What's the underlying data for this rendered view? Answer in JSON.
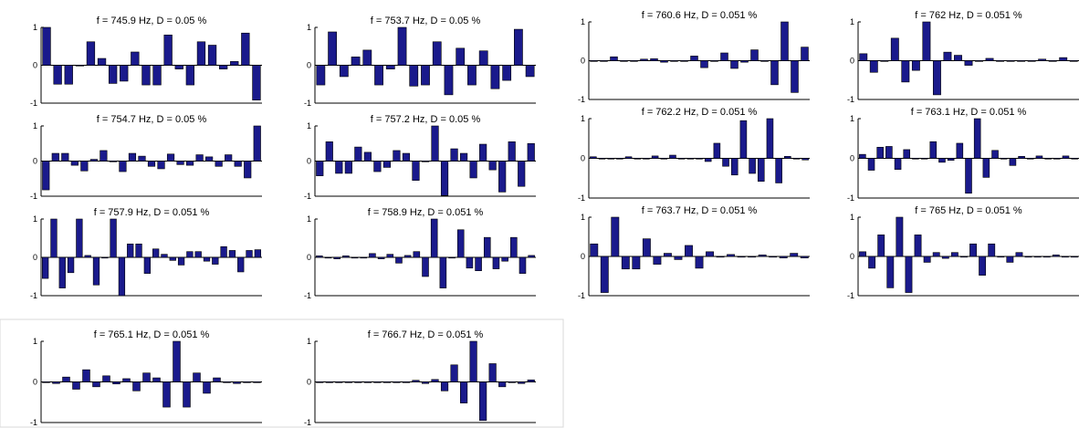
{
  "colors": {
    "bar": "#1a1a8c",
    "bar_edge": "#000000",
    "axis": "#000000",
    "panel_border": "#d8d8d8"
  },
  "chart_data": [
    {
      "type": "bar",
      "title": "f = 745.9 Hz,  D = 0.05 %",
      "ylim": [
        -1,
        1
      ],
      "yticks": [
        "1",
        "0",
        "-1"
      ],
      "values": [
        1.0,
        -0.5,
        -0.5,
        0.0,
        0.62,
        0.18,
        -0.48,
        -0.42,
        0.35,
        -0.52,
        -0.52,
        0.8,
        -0.1,
        -0.52,
        0.62,
        0.53,
        -0.1,
        0.1,
        0.85,
        -0.92
      ]
    },
    {
      "type": "bar",
      "title": "f = 753.7 Hz,  D = 0.05 %",
      "ylim": [
        -1,
        1
      ],
      "yticks": [
        "1",
        "0",
        "-1"
      ],
      "values": [
        -0.52,
        0.88,
        -0.3,
        0.22,
        0.4,
        -0.52,
        -0.1,
        1.0,
        -0.55,
        -0.52,
        0.62,
        -0.78,
        0.45,
        -0.52,
        0.38,
        -0.62,
        -0.4,
        0.95,
        -0.3
      ]
    },
    {
      "type": "bar",
      "title": "f = 760.6 Hz,  D = 0.051 %",
      "ylim": [
        -1,
        1
      ],
      "yticks": [
        "1",
        "0",
        "-1"
      ],
      "values": [
        0.0,
        0.0,
        0.1,
        0.0,
        0.0,
        0.04,
        0.05,
        -0.04,
        0.0,
        0.0,
        0.12,
        -0.18,
        0.0,
        0.2,
        -0.2,
        -0.04,
        0.28,
        0.0,
        -0.62,
        1.0,
        -0.82,
        0.35
      ]
    },
    {
      "type": "bar",
      "title": "f = 762 Hz,  D = 0.051 %",
      "ylim": [
        -1,
        1
      ],
      "yticks": [
        "1",
        "0",
        "-1"
      ],
      "values": [
        0.18,
        -0.3,
        0.0,
        0.58,
        -0.55,
        -0.25,
        1.0,
        -0.88,
        0.22,
        0.14,
        -0.12,
        0.0,
        0.06,
        0.0,
        0.0,
        0.0,
        0.0,
        0.04,
        0.0,
        0.08,
        0.0
      ]
    },
    {
      "type": "bar",
      "title": "f = 754.7 Hz,  D = 0.05 %",
      "ylim": [
        -1,
        1
      ],
      "yticks": [
        "1",
        "0",
        "-1"
      ],
      "values": [
        -0.82,
        0.22,
        0.22,
        -0.12,
        -0.28,
        0.05,
        0.3,
        0.0,
        -0.3,
        0.22,
        0.14,
        -0.15,
        -0.22,
        0.2,
        -0.1,
        -0.12,
        0.18,
        0.12,
        -0.15,
        0.18,
        -0.15,
        -0.48,
        1.0
      ]
    },
    {
      "type": "bar",
      "title": "f = 757.2 Hz,  D = 0.05 %",
      "ylim": [
        -1,
        1
      ],
      "yticks": [
        "1",
        "0",
        "-1"
      ],
      "values": [
        -0.42,
        0.55,
        -0.35,
        -0.35,
        0.4,
        0.25,
        -0.3,
        -0.18,
        0.3,
        0.22,
        -0.55,
        0.0,
        1.0,
        -0.98,
        0.35,
        0.22,
        -0.48,
        0.48,
        -0.25,
        -0.88,
        0.55,
        -0.72,
        0.5
      ]
    },
    {
      "type": "bar",
      "title": "f = 762.2 Hz,  D = 0.051 %",
      "ylim": [
        -1,
        1
      ],
      "yticks": [
        "1",
        "0",
        "-1"
      ],
      "values": [
        0.04,
        0.0,
        0.0,
        0.0,
        0.04,
        0.0,
        0.0,
        0.06,
        0.0,
        0.08,
        0.0,
        0.0,
        0.0,
        -0.08,
        0.38,
        -0.2,
        -0.42,
        0.95,
        -0.38,
        -0.58,
        1.0,
        -0.62,
        0.05,
        0.0,
        -0.04
      ]
    },
    {
      "type": "bar",
      "title": "f = 763.1 Hz,  D = 0.051 %",
      "ylim": [
        -1,
        1
      ],
      "yticks": [
        "1",
        "0",
        "-1"
      ],
      "values": [
        0.1,
        -0.3,
        0.28,
        0.3,
        -0.28,
        0.22,
        0.0,
        0.0,
        0.42,
        -0.1,
        -0.05,
        0.38,
        -0.88,
        1.0,
        -0.48,
        0.2,
        0.0,
        -0.18,
        0.05,
        0.0,
        0.06,
        0.0,
        0.0,
        0.06,
        0.0
      ]
    },
    {
      "type": "bar",
      "title": "f = 757.9 Hz,  D = 0.051 %",
      "ylim": [
        -1,
        1
      ],
      "yticks": [
        "1",
        "0",
        "-1"
      ],
      "values": [
        -0.55,
        1.0,
        -0.8,
        -0.4,
        1.0,
        0.05,
        -0.72,
        0.0,
        1.0,
        -1.0,
        0.35,
        0.35,
        -0.42,
        0.22,
        0.08,
        -0.08,
        -0.2,
        0.15,
        0.15,
        -0.1,
        -0.18,
        0.28,
        0.18,
        -0.38,
        0.18,
        0.2
      ]
    },
    {
      "type": "bar",
      "title": "f = 758.9 Hz,  D = 0.051 %",
      "ylim": [
        -1,
        1
      ],
      "yticks": [
        "1",
        "0",
        "-1"
      ],
      "values": [
        0.04,
        0.0,
        -0.04,
        0.04,
        0.0,
        0.0,
        0.1,
        -0.04,
        0.08,
        -0.15,
        0.05,
        0.15,
        -0.5,
        1.0,
        -0.8,
        0.0,
        0.72,
        -0.28,
        -0.35,
        0.52,
        -0.3,
        -0.1,
        0.52,
        -0.42,
        0.05
      ]
    },
    {
      "type": "bar",
      "title": "f = 763.7 Hz,  D = 0.051 %",
      "ylim": [
        -1,
        1
      ],
      "yticks": [
        "1",
        "0",
        "-1"
      ],
      "values": [
        0.32,
        -0.92,
        1.0,
        -0.32,
        -0.32,
        0.45,
        -0.2,
        0.08,
        -0.08,
        0.28,
        -0.3,
        0.12,
        0.0,
        0.05,
        0.0,
        0.0,
        0.04,
        0.0,
        -0.04,
        0.08,
        -0.04
      ]
    },
    {
      "type": "bar",
      "title": "f = 765 Hz,  D = 0.051 %",
      "ylim": [
        -1,
        1
      ],
      "yticks": [
        "1",
        "0",
        "-1"
      ],
      "values": [
        0.12,
        -0.3,
        0.55,
        -0.8,
        1.0,
        -0.92,
        0.55,
        -0.15,
        0.1,
        -0.05,
        0.1,
        0.0,
        0.32,
        -0.48,
        0.32,
        0.0,
        -0.15,
        0.1,
        0.0,
        0.0,
        0.0,
        0.04,
        0.0,
        0.0
      ]
    },
    {
      "type": "bar",
      "title": "f = 765.1 Hz,  D = 0.051 %",
      "ylim": [
        -1,
        1
      ],
      "yticks": [
        "1",
        "0",
        "-1"
      ],
      "values": [
        0.0,
        -0.04,
        0.12,
        -0.18,
        0.3,
        -0.12,
        0.15,
        -0.05,
        0.08,
        -0.22,
        0.22,
        0.1,
        -0.62,
        1.0,
        -0.62,
        0.22,
        -0.28,
        0.1,
        0.0,
        -0.04,
        0.0,
        0.0
      ]
    },
    {
      "type": "bar",
      "title": "f = 766.7 Hz,  D = 0.051 %",
      "ylim": [
        -1,
        1
      ],
      "yticks": [
        "1",
        "0",
        "-1"
      ],
      "values": [
        0.0,
        0.0,
        0.0,
        0.0,
        0.0,
        0.0,
        0.0,
        0.0,
        0.0,
        0.0,
        0.04,
        -0.04,
        0.06,
        -0.22,
        0.42,
        -0.52,
        1.0,
        -0.95,
        0.45,
        -0.12,
        0.0,
        -0.04,
        0.05
      ]
    }
  ]
}
